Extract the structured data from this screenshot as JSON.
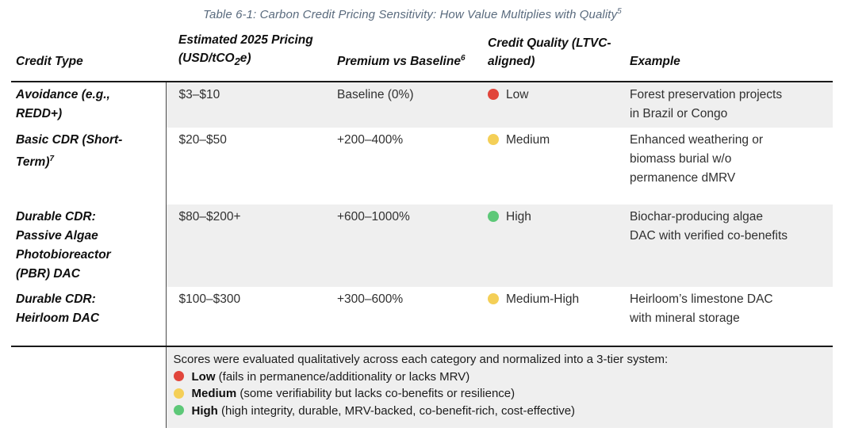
{
  "title": {
    "text": "Table 6-1: Carbon Credit Pricing Sensitivity: How Value Multiplies with Quality",
    "sup": "5"
  },
  "columns": {
    "credit_type": {
      "label": "Credit Type"
    },
    "pricing": {
      "label_pre": "Estimated 2025 Pricing (USD/tCO",
      "sub": "2",
      "label_post": "e)"
    },
    "premium": {
      "label": "Premium vs Baseline",
      "sup": "6"
    },
    "quality": {
      "label": "Credit Quality (LTVC-aligned)"
    },
    "example": {
      "label": "Example"
    }
  },
  "rows": [
    {
      "credit_type": "Avoidance (e.g., REDD+)",
      "credit_type_sup": "",
      "pricing": "$3–$10",
      "premium": "Baseline (0%)",
      "quality": {
        "label": "Low",
        "color": "#e1453b"
      },
      "example": "Forest preservation projects in Brazil or Congo"
    },
    {
      "credit_type": "Basic CDR (Short-Term)",
      "credit_type_sup": "7",
      "pricing": "$20–$50",
      "premium": "+200–400%",
      "quality": {
        "label": "Medium",
        "color": "#f4cf57"
      },
      "example": "Enhanced weathering or biomass burial w/o permanence dMRV"
    },
    {
      "credit_type": "Durable CDR: Passive Algae Photobioreactor (PBR) DAC",
      "credit_type_sup": "",
      "pricing": "$80–$200+",
      "premium": "+600–1000%",
      "quality": {
        "label": "High",
        "color": "#5dc878"
      },
      "example": "Biochar-producing algae DAC with verified co-benefits"
    },
    {
      "credit_type": "Durable CDR: Heirloom DAC",
      "credit_type_sup": "",
      "pricing": "$100–$300",
      "premium": "+300–600%",
      "quality": {
        "label": "Medium-High",
        "color": "#f4cf57"
      },
      "example": "Heirloom’s limestone DAC with mineral storage"
    }
  ],
  "legend": {
    "intro": "Scores were evaluated qualitatively across each category and normalized into a 3-tier system:",
    "items": [
      {
        "label": "Low",
        "description": "(fails in permanence/additionality or lacks MRV)",
        "color": "#e1453b"
      },
      {
        "label": "Medium",
        "description": "(some verifiability but lacks co-benefits or resilience)",
        "color": "#f4cf57"
      },
      {
        "label": "High",
        "description": "(high integrity, durable, MRV-backed, co-benefit-rich, cost-effective)",
        "color": "#5dc878"
      }
    ]
  },
  "colors": {
    "row_shade": "#efefef",
    "title_text": "#5a6b7e",
    "quality_low": "#e1453b",
    "quality_medium": "#f4cf57",
    "quality_high": "#5dc878"
  }
}
